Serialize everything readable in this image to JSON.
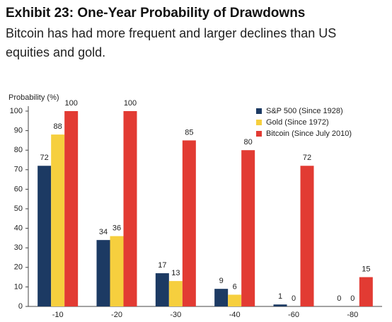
{
  "chart_data": {
    "type": "bar",
    "title": "Exhibit 23: One-Year Probability of Drawdowns",
    "subtitle": "Bitcoin has had more frequent and larger declines than US equities and gold.",
    "y_label": "Probability (%)",
    "categories": [
      "-10",
      "-20",
      "-30",
      "-40",
      "-60",
      "-80"
    ],
    "series": [
      {
        "name": "S&P 500 (Since 1928)",
        "color": "#1c3a63",
        "values": [
          72,
          34,
          17,
          9,
          1,
          0
        ]
      },
      {
        "name": "Gold (Since 1972)",
        "color": "#f6cf3e",
        "values": [
          88,
          36,
          13,
          6,
          0,
          0
        ]
      },
      {
        "name": "Bitcoin (Since July 2010)",
        "color": "#e23b33",
        "values": [
          100,
          100,
          85,
          80,
          72,
          15
        ]
      }
    ],
    "ylim": [
      0,
      100
    ],
    "yticks": [
      0,
      10,
      20,
      30,
      40,
      50,
      60,
      70,
      80,
      90,
      100
    ],
    "grid": false,
    "legend": "top-right"
  }
}
